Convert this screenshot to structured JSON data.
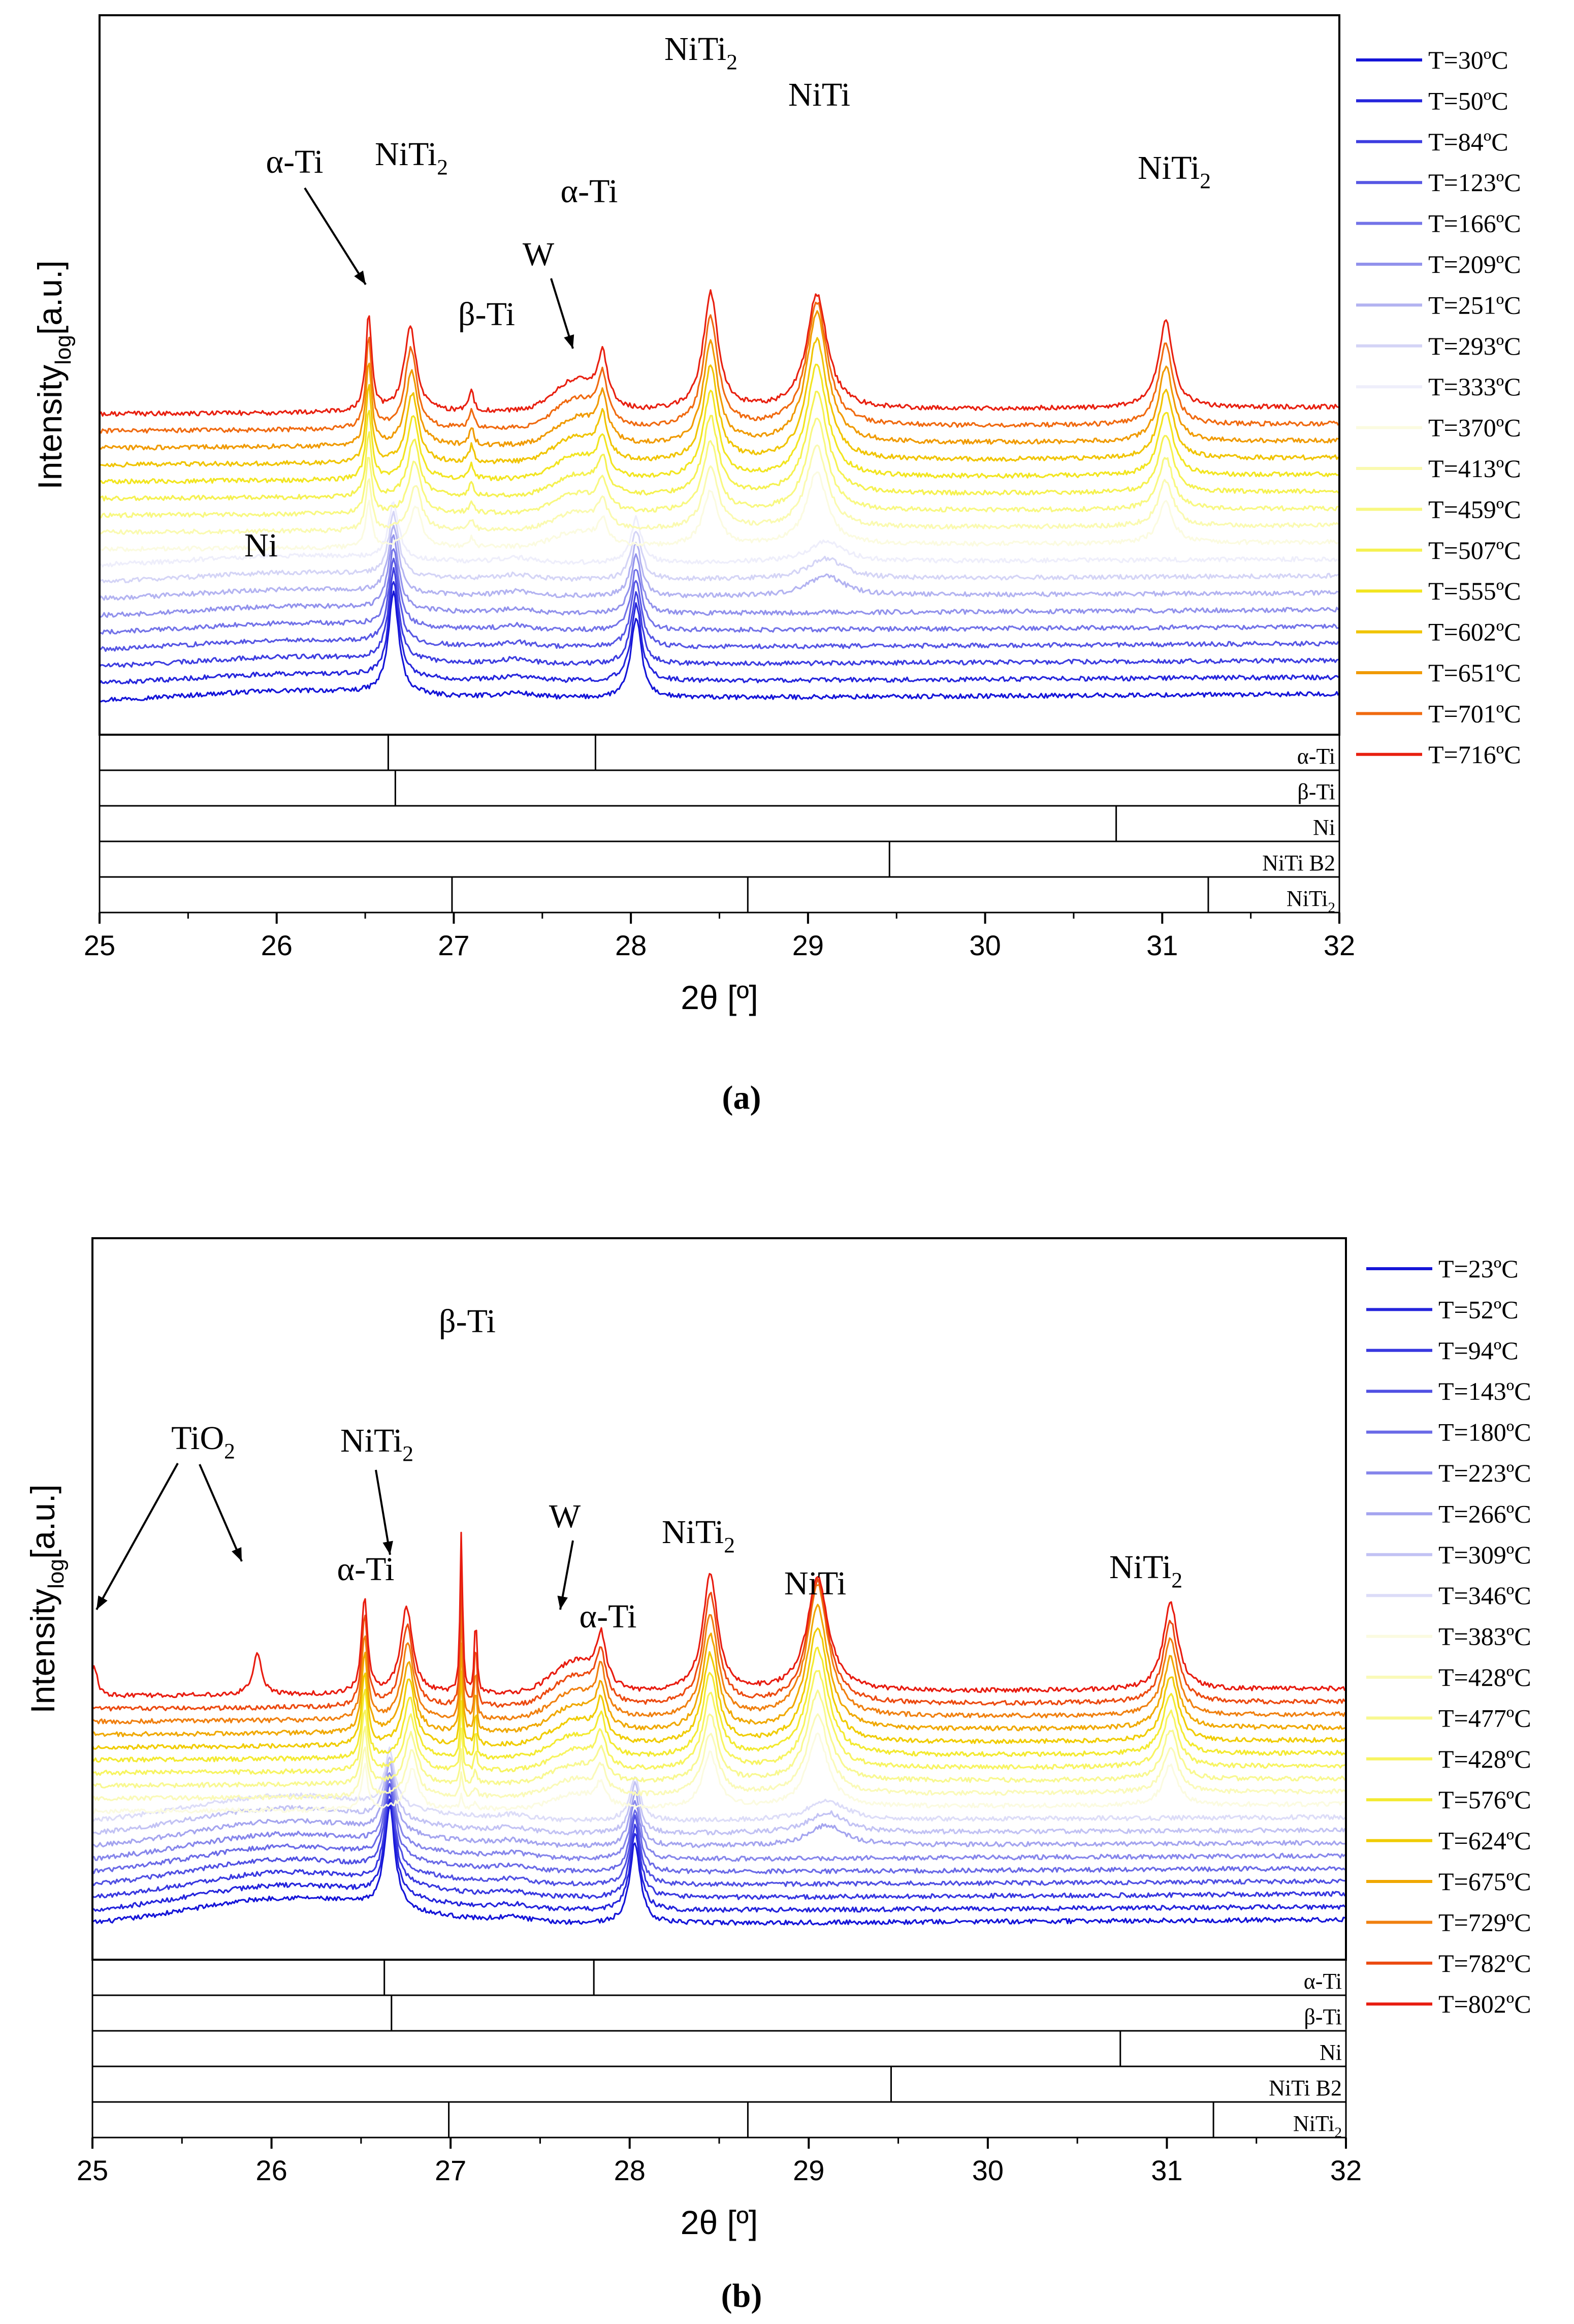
{
  "figure": {
    "caption_a": "(a)",
    "caption_b": "(b)"
  },
  "chart_data": [
    {
      "type": "line",
      "panel": "a",
      "xlabel": "2θ [º]",
      "ylabel_main": "Intensity",
      "ylabel_sub": "log",
      "ylabel_unit": "[a.u.]",
      "xlim": [
        25,
        32
      ],
      "xticks": [
        "25",
        "26",
        "27",
        "28",
        "29",
        "30",
        "31",
        "32"
      ],
      "y_scale": "log (arbitrary units, stacked offsets)",
      "legend_position": "right",
      "series": [
        {
          "name": "T=30ºC",
          "color": "#1515d8"
        },
        {
          "name": "T=50ºC",
          "color": "#2626dc"
        },
        {
          "name": "T=84ºC",
          "color": "#3d3de0"
        },
        {
          "name": "T=123ºC",
          "color": "#5656e4"
        },
        {
          "name": "T=166ºC",
          "color": "#7373e8"
        },
        {
          "name": "T=209ºC",
          "color": "#9292ec"
        },
        {
          "name": "T=251ºC",
          "color": "#b3b3f1"
        },
        {
          "name": "T=293ºC",
          "color": "#d4d4f6"
        },
        {
          "name": "T=333ºC",
          "color": "#eeeefb"
        },
        {
          "name": "T=370ºC",
          "color": "#fbfbe0"
        },
        {
          "name": "T=413ºC",
          "color": "#fafab0"
        },
        {
          "name": "T=459ºC",
          "color": "#f8f880"
        },
        {
          "name": "T=507ºC",
          "color": "#f5f150"
        },
        {
          "name": "T=555ºC",
          "color": "#f2e520"
        },
        {
          "name": "T=602ºC",
          "color": "#f0c400"
        },
        {
          "name": "T=651ºC",
          "color": "#f09a00"
        },
        {
          "name": "T=701ºC",
          "color": "#f06a10"
        },
        {
          "name": "T=716ºC",
          "color": "#e82010"
        }
      ],
      "peak_annotations": [
        {
          "text": "α-Ti",
          "x": 26.5
        },
        {
          "text": "NiTi",
          "sub": "2",
          "x": 26.8
        },
        {
          "text": "β-Ti",
          "x": 27.1
        },
        {
          "text": "W",
          "x": 27.7
        },
        {
          "text": "α-Ti",
          "x": 27.83
        },
        {
          "text": "NiTi",
          "sub": "2",
          "x": 28.43
        },
        {
          "text": "NiTi",
          "x": 29.05
        },
        {
          "text": "NiTi",
          "sub": "2",
          "x": 31.0
        },
        {
          "text": "Ni",
          "x": 25.95
        }
      ],
      "reference_rows": [
        {
          "label": "α-Ti",
          "positions": [
            26.63,
            27.8
          ]
        },
        {
          "label": "β-Ti",
          "positions": [
            26.67
          ]
        },
        {
          "label": "Ni",
          "positions": [
            30.74
          ]
        },
        {
          "label": "NiTi B2",
          "positions": [
            29.46
          ]
        },
        {
          "label": "NiTi",
          "sub": "2",
          "positions": [
            26.99,
            28.66,
            31.26
          ]
        }
      ]
    },
    {
      "type": "line",
      "panel": "b",
      "xlabel": "2θ [º]",
      "ylabel_main": "Intensity",
      "ylabel_sub": "log",
      "ylabel_unit": "[a.u.]",
      "xlim": [
        25,
        32
      ],
      "xticks": [
        "25",
        "26",
        "27",
        "28",
        "29",
        "30",
        "31",
        "32"
      ],
      "y_scale": "log (arbitrary units, stacked offsets)",
      "legend_position": "right",
      "series": [
        {
          "name": "T=23ºC",
          "color": "#1515d8"
        },
        {
          "name": "T=52ºC",
          "color": "#2424dc"
        },
        {
          "name": "T=94ºC",
          "color": "#3838e0"
        },
        {
          "name": "T=143ºC",
          "color": "#5050e3"
        },
        {
          "name": "T=180ºC",
          "color": "#6a6ae7"
        },
        {
          "name": "T=223ºC",
          "color": "#8686eb"
        },
        {
          "name": "T=266ºC",
          "color": "#a4a4ef"
        },
        {
          "name": "T=309ºC",
          "color": "#c2c2f4"
        },
        {
          "name": "T=346ºC",
          "color": "#dcdcf8"
        },
        {
          "name": "T=383ºC",
          "color": "#fbfbe0"
        },
        {
          "name": "T=428ºC",
          "color": "#fafab8"
        },
        {
          "name": "T=477ºC",
          "color": "#f8f890"
        },
        {
          "name": "T=428ºC",
          "color": "#f7f460"
        },
        {
          "name": "T=576ºC",
          "color": "#f3ea30"
        },
        {
          "name": "T=624ºC",
          "color": "#f0cc00"
        },
        {
          "name": "T=675ºC",
          "color": "#f0a800"
        },
        {
          "name": "T=729ºC",
          "color": "#f08010"
        },
        {
          "name": "T=782ºC",
          "color": "#ec4a10"
        },
        {
          "name": "T=802ºC",
          "color": "#e81c10"
        }
      ],
      "peak_annotations": [
        {
          "text": "TiO",
          "sub": "2",
          "x": 25.9
        },
        {
          "text": "α-Ti",
          "x": 26.5
        },
        {
          "text": "NiTi",
          "sub": "2",
          "x": 26.68
        },
        {
          "text": "β-Ti",
          "x": 27.06
        },
        {
          "text": "W",
          "x": 27.65
        },
        {
          "text": "α-Ti",
          "x": 27.85
        },
        {
          "text": "NiTi",
          "sub": "2",
          "x": 28.4
        },
        {
          "text": "NiTi",
          "x": 29.05
        },
        {
          "text": "NiTi",
          "sub": "2",
          "x": 30.95
        }
      ],
      "reference_rows": [
        {
          "label": "α-Ti",
          "positions": [
            26.63,
            27.8
          ]
        },
        {
          "label": "β-Ti",
          "positions": [
            26.67
          ]
        },
        {
          "label": "Ni",
          "positions": [
            30.74
          ]
        },
        {
          "label": "NiTi B2",
          "positions": [
            29.46
          ]
        },
        {
          "label": "NiTi",
          "sub": "2",
          "positions": [
            26.99,
            28.66,
            31.26
          ]
        }
      ]
    }
  ]
}
